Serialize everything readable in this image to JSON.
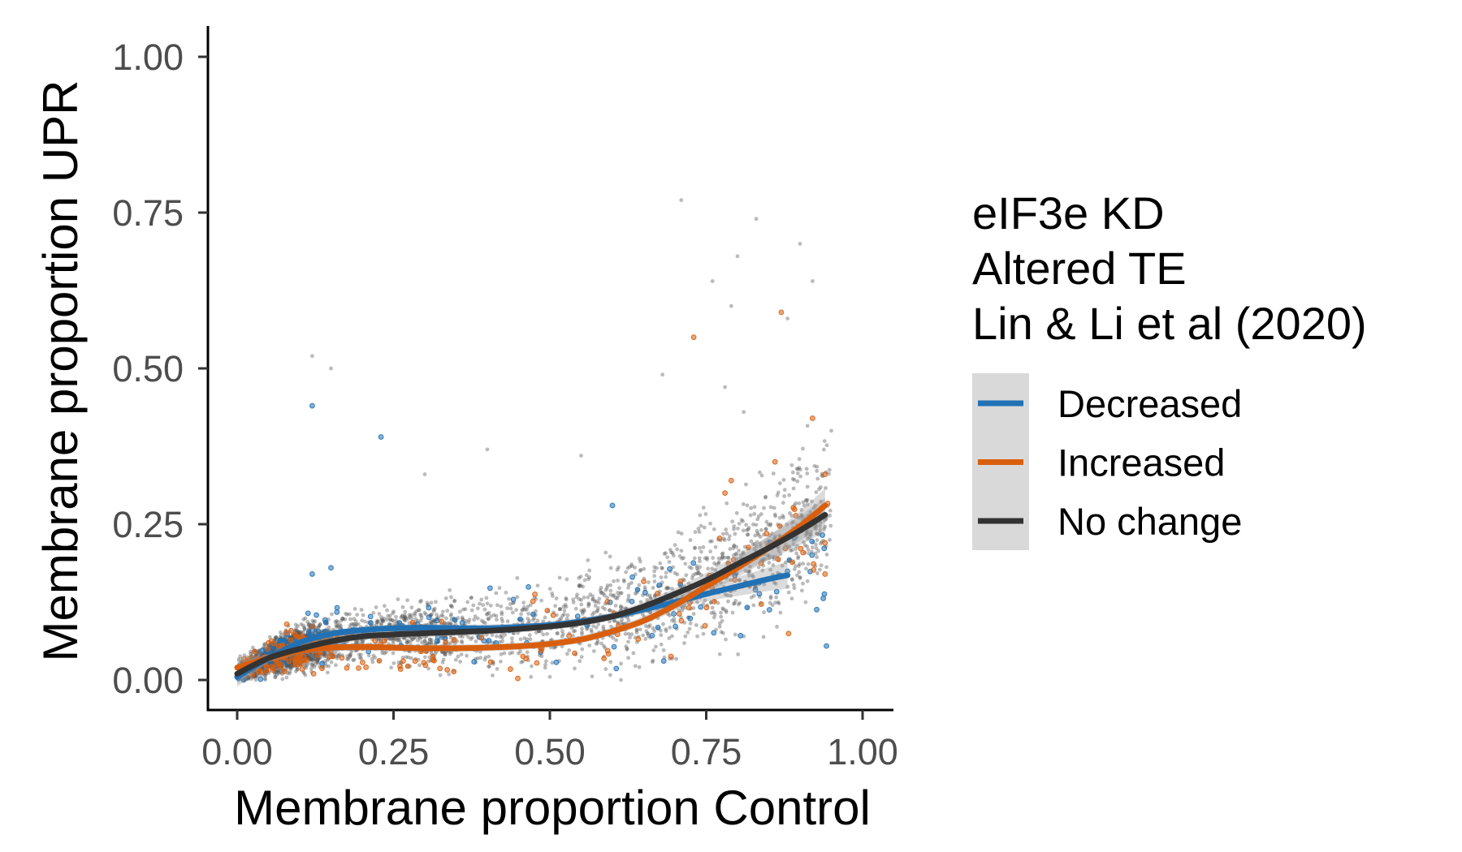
{
  "chart_data": {
    "type": "scatter",
    "title": "",
    "xlabel": "Membrane proportion Control",
    "ylabel": "Membrane proportion UPR",
    "xlim": [
      -0.05,
      1.05
    ],
    "ylim": [
      -0.05,
      1.05
    ],
    "x_ticks": [
      0,
      0.25,
      0.5,
      0.75,
      1
    ],
    "x_tick_labels": [
      "0.00",
      "0.25",
      "0.50",
      "0.75",
      "1.00"
    ],
    "y_ticks": [
      0,
      0.25,
      0.5,
      0.75,
      1
    ],
    "y_tick_labels": [
      "0.00",
      "0.25",
      "0.50",
      "0.75",
      "1.00"
    ],
    "grid": false,
    "legend": {
      "position": "right",
      "title_lines": [
        "eIF3e KD",
        "Altered TE",
        "Lin & Li et al (2020)"
      ],
      "entries": [
        {
          "label": "Decreased",
          "color": "#2171b5"
        },
        {
          "label": "Increased",
          "color": "#d95f0e"
        },
        {
          "label": "No change",
          "color": "#333333"
        }
      ]
    },
    "series": [
      {
        "name": "No change",
        "color": "#333333",
        "point_color": "#555555",
        "approx_point_count": 3500,
        "outliers": [
          [
            0.12,
            0.52
          ],
          [
            0.15,
            0.5
          ],
          [
            0.71,
            0.77
          ],
          [
            0.83,
            0.74
          ],
          [
            0.8,
            0.68
          ],
          [
            0.9,
            0.7
          ],
          [
            0.92,
            0.64
          ],
          [
            0.76,
            0.64
          ],
          [
            0.79,
            0.6
          ],
          [
            0.68,
            0.49
          ],
          [
            0.78,
            0.47
          ],
          [
            0.4,
            0.37
          ],
          [
            0.55,
            0.36
          ],
          [
            0.3,
            0.33
          ],
          [
            0.95,
            0.4
          ],
          [
            0.88,
            0.58
          ],
          [
            0.81,
            0.43
          ]
        ],
        "trend_x": [
          0,
          0.05,
          0.1,
          0.15,
          0.2,
          0.25,
          0.3,
          0.35,
          0.4,
          0.45,
          0.5,
          0.55,
          0.6,
          0.65,
          0.7,
          0.75,
          0.8,
          0.85,
          0.9,
          0.94
        ],
        "trend_y": [
          0.01,
          0.035,
          0.05,
          0.062,
          0.07,
          0.073,
          0.075,
          0.077,
          0.079,
          0.082,
          0.086,
          0.092,
          0.102,
          0.118,
          0.138,
          0.16,
          0.186,
          0.212,
          0.24,
          0.265
        ]
      },
      {
        "name": "Decreased",
        "color": "#2171b5",
        "approx_point_count": 180,
        "outliers": [
          [
            0.12,
            0.44
          ],
          [
            0.23,
            0.39
          ],
          [
            0.6,
            0.28
          ],
          [
            0.15,
            0.18
          ],
          [
            0.12,
            0.17
          ]
        ],
        "trend_x": [
          0,
          0.05,
          0.1,
          0.15,
          0.2,
          0.25,
          0.3,
          0.35,
          0.4,
          0.45,
          0.5,
          0.55,
          0.6,
          0.65,
          0.7,
          0.75,
          0.8,
          0.85,
          0.88
        ],
        "trend_y": [
          0.005,
          0.035,
          0.06,
          0.074,
          0.08,
          0.083,
          0.084,
          0.083,
          0.083,
          0.085,
          0.088,
          0.094,
          0.102,
          0.113,
          0.125,
          0.138,
          0.15,
          0.162,
          0.168
        ]
      },
      {
        "name": "Increased",
        "color": "#d95f0e",
        "approx_point_count": 220,
        "outliers": [
          [
            0.73,
            0.55
          ],
          [
            0.87,
            0.59
          ],
          [
            0.92,
            0.42
          ],
          [
            0.94,
            0.33
          ],
          [
            0.79,
            0.32
          ],
          [
            0.94,
            0.22
          ],
          [
            0.94,
            0.17
          ],
          [
            0.86,
            0.35
          ],
          [
            0.78,
            0.3
          ]
        ],
        "trend_x": [
          0,
          0.05,
          0.1,
          0.15,
          0.2,
          0.25,
          0.3,
          0.35,
          0.4,
          0.45,
          0.5,
          0.55,
          0.6,
          0.65,
          0.7,
          0.75,
          0.8,
          0.85,
          0.9,
          0.94
        ],
        "trend_y": [
          0.02,
          0.035,
          0.047,
          0.052,
          0.053,
          0.052,
          0.051,
          0.051,
          0.052,
          0.054,
          0.058,
          0.065,
          0.078,
          0.095,
          0.12,
          0.15,
          0.18,
          0.212,
          0.247,
          0.28
        ]
      }
    ]
  }
}
